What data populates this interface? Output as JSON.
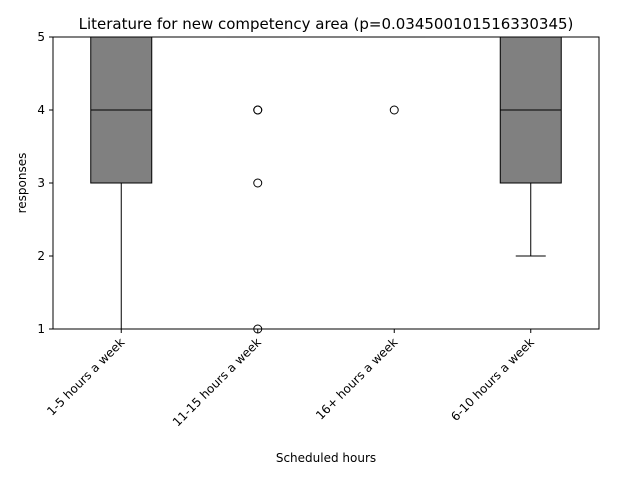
{
  "chart_data": {
    "type": "box",
    "title": "Literature for new competency area (p=0.034500101516330345)",
    "xlabel": "Scheduled hours",
    "ylabel": "responses",
    "categories": [
      "1-5 hours a week",
      "11-15 hours a week",
      "16+ hours a week",
      "6-10 hours a week"
    ],
    "ylim": [
      1,
      5
    ],
    "yticks": [
      1,
      2,
      3,
      4,
      5
    ],
    "grid": false,
    "legend": "none",
    "box_color": "#808080",
    "edge_color": "#000000",
    "boxes": [
      {
        "q1": 3,
        "median": 4,
        "q3": 5,
        "whisker_low": 1,
        "whisker_high": 5,
        "outliers": []
      },
      {
        "q1": 5,
        "median": 5,
        "q3": 5,
        "whisker_low": 5,
        "whisker_high": 5,
        "outliers": [
          4,
          4,
          3,
          1
        ]
      },
      {
        "q1": 5,
        "median": 5,
        "q3": 5,
        "whisker_low": 5,
        "whisker_high": 5,
        "outliers": [
          4
        ]
      },
      {
        "q1": 3,
        "median": 4,
        "q3": 5,
        "whisker_low": 2,
        "whisker_high": 5,
        "outliers": []
      }
    ]
  }
}
